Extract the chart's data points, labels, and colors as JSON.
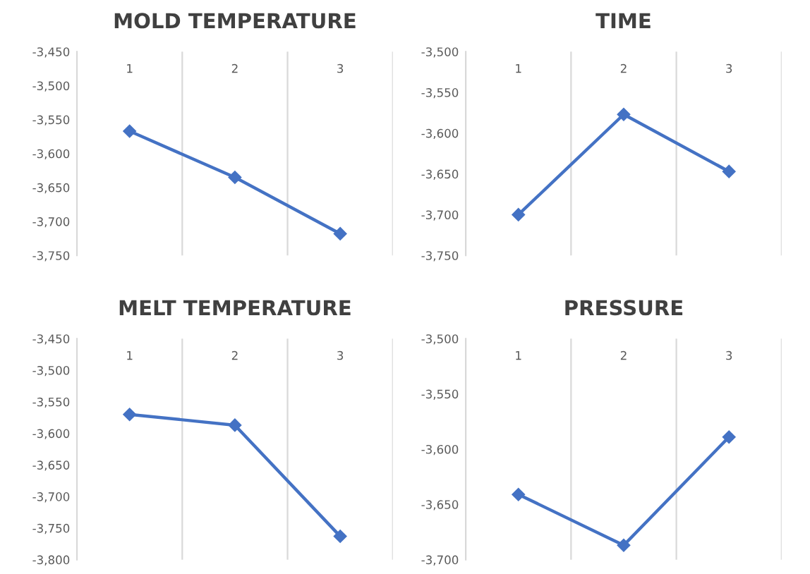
{
  "chart_data": [
    {
      "type": "line",
      "title": "MOLD TEMPERATURE",
      "categories": [
        "1",
        "2",
        "3"
      ],
      "series": [
        {
          "color": "#4472c4",
          "values": [
            -3567,
            -3635,
            -3718
          ]
        }
      ],
      "ylim": [
        -3750,
        -3450
      ],
      "yticks": [
        {
          "value": -3450,
          "label": "-3,450"
        },
        {
          "value": -3500,
          "label": "-3,500"
        },
        {
          "value": -3550,
          "label": "-3,550"
        },
        {
          "value": -3600,
          "label": "-3,600"
        },
        {
          "value": -3650,
          "label": "-3,650"
        },
        {
          "value": -3700,
          "label": "-3,700"
        },
        {
          "value": -3750,
          "label": "-3,750"
        }
      ],
      "grid": "x",
      "marker": "diamond",
      "line_style": "solid",
      "legend": false
    },
    {
      "type": "line",
      "title": "TIME",
      "categories": [
        "1",
        "2",
        "3"
      ],
      "series": [
        {
          "color": "#4472c4",
          "values": [
            -3700,
            -3577,
            -3647
          ]
        }
      ],
      "ylim": [
        -3750,
        -3500
      ],
      "yticks": [
        {
          "value": -3500,
          "label": "-3,500"
        },
        {
          "value": -3550,
          "label": "-3,550"
        },
        {
          "value": -3600,
          "label": "-3,600"
        },
        {
          "value": -3650,
          "label": "-3,650"
        },
        {
          "value": -3700,
          "label": "-3,700"
        },
        {
          "value": -3750,
          "label": "-3,750"
        }
      ],
      "grid": "x",
      "marker": "diamond",
      "line_style": "solid",
      "legend": false
    },
    {
      "type": "line",
      "title": "MELT TEMPERATURE",
      "categories": [
        "1",
        "2",
        "3"
      ],
      "series": [
        {
          "color": "#4472c4",
          "values": [
            -3570,
            -3587,
            -3763
          ]
        }
      ],
      "ylim": [
        -3800,
        -3450
      ],
      "yticks": [
        {
          "value": -3450,
          "label": "-3,450"
        },
        {
          "value": -3500,
          "label": "-3,500"
        },
        {
          "value": -3550,
          "label": "-3,550"
        },
        {
          "value": -3600,
          "label": "-3,600"
        },
        {
          "value": -3650,
          "label": "-3,650"
        },
        {
          "value": -3700,
          "label": "-3,700"
        },
        {
          "value": -3750,
          "label": "-3,750"
        },
        {
          "value": -3800,
          "label": "-3,800"
        }
      ],
      "grid": "x",
      "marker": "diamond",
      "line_style": "solid",
      "legend": false
    },
    {
      "type": "line",
      "title": "PRESSURE",
      "categories": [
        "1",
        "2",
        "3"
      ],
      "series": [
        {
          "color": "#4472c4",
          "values": [
            -3641,
            -3687,
            -3589
          ]
        }
      ],
      "ylim": [
        -3700,
        -3500
      ],
      "yticks": [
        {
          "value": -3500,
          "label": "-3,500"
        },
        {
          "value": -3550,
          "label": "-3,550"
        },
        {
          "value": -3600,
          "label": "-3,600"
        },
        {
          "value": -3650,
          "label": "-3,650"
        },
        {
          "value": -3700,
          "label": "-3,700"
        }
      ],
      "grid": "x",
      "marker": "diamond",
      "line_style": "solid",
      "legend": false
    }
  ]
}
